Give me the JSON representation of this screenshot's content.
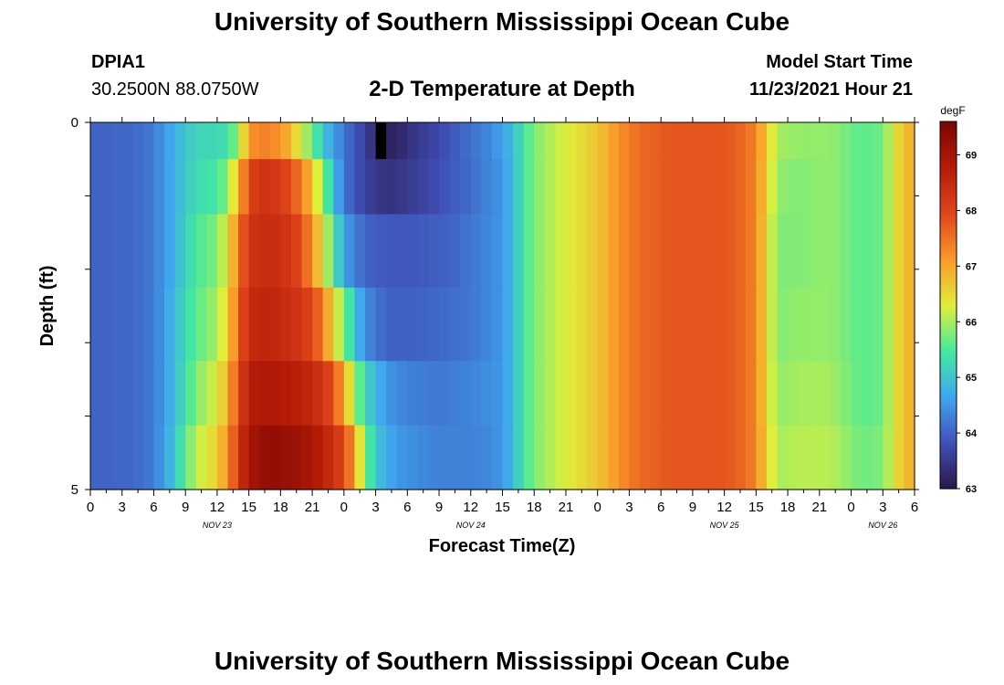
{
  "page": {
    "title": "University of Southern Mississippi Ocean Cube",
    "title_repeat": "University of Southern Mississippi Ocean Cube",
    "station_id": "DPIA1",
    "coordinates": "30.2500N  88.0750W",
    "subtitle": "2-D Temperature at Depth",
    "model_start_label": "Model Start Time",
    "model_start_value": "11/23/2021 Hour 21"
  },
  "chart_data": {
    "type": "heatmap",
    "title": "2-D Temperature at Depth",
    "xlabel": "Forecast Time(Z)",
    "ylabel": "Depth (ft)",
    "x_tick_labels": [
      "0",
      "3",
      "6",
      "9",
      "12",
      "15",
      "18",
      "21",
      "0",
      "3",
      "6",
      "9",
      "12",
      "15",
      "18",
      "21",
      "0",
      "3",
      "6",
      "9",
      "12",
      "15",
      "18",
      "21",
      "0",
      "3",
      "6"
    ],
    "x_range_hours": [
      0,
      78
    ],
    "date_labels": [
      {
        "label": "NOV 23",
        "hour": 12
      },
      {
        "label": "NOV 24",
        "hour": 36
      },
      {
        "label": "NOV 25",
        "hour": 60
      },
      {
        "label": "NOV 26",
        "hour": 75
      }
    ],
    "y_range_ft": [
      0,
      5
    ],
    "y_tick_labels": [
      "0",
      "5"
    ],
    "colorbar": {
      "unit": "degF",
      "min": 63,
      "max": 69.6,
      "tick_values": [
        63,
        64,
        65,
        66,
        67,
        68,
        69
      ],
      "tick_labels": [
        "63",
        "64",
        "65",
        "66",
        "67",
        "68",
        "69"
      ],
      "colors": [
        "#2b1648",
        "#4050b8",
        "#3fa6f0",
        "#42ea9e",
        "#e0ee3a",
        "#fa9a2a",
        "#e0461b",
        "#b61c07",
        "#7c0505"
      ]
    },
    "layers": [
      {
        "depth_ft": 0.25,
        "keyframes": [
          [
            0,
            64.0
          ],
          [
            4,
            64.05
          ],
          [
            6,
            64.25
          ],
          [
            8,
            64.8
          ],
          [
            10,
            65.2
          ],
          [
            13,
            65.3
          ],
          [
            14,
            66.0
          ],
          [
            15,
            67.1
          ],
          [
            16,
            67.4
          ],
          [
            18,
            67.2
          ],
          [
            19,
            66.8
          ],
          [
            20,
            66.2
          ],
          [
            21,
            65.7
          ],
          [
            22,
            65.0
          ],
          [
            24,
            64.2
          ],
          [
            26,
            63.6
          ],
          [
            27,
            63.3
          ],
          [
            28,
            63.2
          ],
          [
            29,
            63.2
          ],
          [
            30,
            63.4
          ],
          [
            32,
            63.6
          ],
          [
            35,
            64.0
          ],
          [
            38,
            64.4
          ],
          [
            40,
            64.9
          ],
          [
            41,
            65.4
          ],
          [
            42,
            65.8
          ],
          [
            45,
            66.3
          ],
          [
            48,
            66.7
          ],
          [
            50,
            67.2
          ],
          [
            52,
            67.6
          ],
          [
            55,
            67.8
          ],
          [
            60,
            67.8
          ],
          [
            62,
            67.6
          ],
          [
            63,
            67.3
          ],
          [
            64,
            66.7
          ],
          [
            65,
            66.0
          ],
          [
            67,
            65.9
          ],
          [
            70,
            65.9
          ],
          [
            73,
            65.6
          ],
          [
            75,
            65.7
          ],
          [
            76,
            66.3
          ],
          [
            77,
            66.8
          ],
          [
            78,
            66.9
          ]
        ]
      },
      {
        "depth_ft": 0.75,
        "keyframes": [
          [
            0,
            64.0
          ],
          [
            4,
            64.05
          ],
          [
            6,
            64.25
          ],
          [
            8,
            64.8
          ],
          [
            10,
            65.3
          ],
          [
            12,
            65.4
          ],
          [
            13,
            65.9
          ],
          [
            14,
            66.8
          ],
          [
            15,
            68.0
          ],
          [
            16,
            68.3
          ],
          [
            17,
            68.3
          ],
          [
            19,
            67.9
          ],
          [
            20,
            67.4
          ],
          [
            21,
            66.7
          ],
          [
            22,
            65.9
          ],
          [
            23,
            64.9
          ],
          [
            24,
            64.2
          ],
          [
            26,
            63.6
          ],
          [
            28,
            63.4
          ],
          [
            30,
            63.5
          ],
          [
            33,
            63.8
          ],
          [
            36,
            64.1
          ],
          [
            39,
            64.5
          ],
          [
            40,
            64.9
          ],
          [
            41,
            65.4
          ],
          [
            42,
            65.8
          ],
          [
            45,
            66.3
          ],
          [
            48,
            66.7
          ],
          [
            50,
            67.2
          ],
          [
            52,
            67.6
          ],
          [
            55,
            67.8
          ],
          [
            60,
            67.8
          ],
          [
            62,
            67.6
          ],
          [
            63,
            67.3
          ],
          [
            64,
            66.6
          ],
          [
            65,
            65.9
          ],
          [
            67,
            65.8
          ],
          [
            70,
            65.9
          ],
          [
            73,
            65.6
          ],
          [
            75,
            65.7
          ],
          [
            76,
            66.3
          ],
          [
            77,
            66.8
          ],
          [
            78,
            66.9
          ]
        ]
      },
      {
        "depth_ft": 1.75,
        "keyframes": [
          [
            0,
            64.0
          ],
          [
            4,
            64.05
          ],
          [
            6,
            64.25
          ],
          [
            8,
            64.8
          ],
          [
            10,
            65.5
          ],
          [
            12,
            65.8
          ],
          [
            13,
            66.4
          ],
          [
            14,
            67.4
          ],
          [
            15,
            68.3
          ],
          [
            17,
            68.5
          ],
          [
            19,
            68.2
          ],
          [
            20,
            67.9
          ],
          [
            21,
            67.2
          ],
          [
            22,
            66.4
          ],
          [
            23,
            65.5
          ],
          [
            24,
            64.6
          ],
          [
            26,
            64.0
          ],
          [
            28,
            63.9
          ],
          [
            31,
            63.9
          ],
          [
            34,
            64.0
          ],
          [
            36,
            64.2
          ],
          [
            39,
            64.5
          ],
          [
            40,
            64.9
          ],
          [
            41,
            65.4
          ],
          [
            42,
            65.8
          ],
          [
            45,
            66.3
          ],
          [
            48,
            66.7
          ],
          [
            50,
            67.2
          ],
          [
            52,
            67.6
          ],
          [
            55,
            67.8
          ],
          [
            60,
            67.8
          ],
          [
            62,
            67.6
          ],
          [
            63,
            67.3
          ],
          [
            64,
            66.5
          ],
          [
            65,
            65.8
          ],
          [
            67,
            65.8
          ],
          [
            70,
            65.9
          ],
          [
            73,
            65.6
          ],
          [
            75,
            65.7
          ],
          [
            76,
            66.3
          ],
          [
            77,
            66.8
          ],
          [
            78,
            66.9
          ]
        ]
      },
      {
        "depth_ft": 2.75,
        "keyframes": [
          [
            0,
            64.0
          ],
          [
            4,
            64.05
          ],
          [
            6,
            64.25
          ],
          [
            8,
            64.9
          ],
          [
            10,
            65.6
          ],
          [
            12,
            66.0
          ],
          [
            13,
            66.6
          ],
          [
            14,
            67.6
          ],
          [
            15,
            68.5
          ],
          [
            17,
            68.6
          ],
          [
            19,
            68.4
          ],
          [
            21,
            68.0
          ],
          [
            22,
            67.4
          ],
          [
            23,
            66.5
          ],
          [
            24,
            65.8
          ],
          [
            25,
            65.0
          ],
          [
            26,
            64.4
          ],
          [
            28,
            64.0
          ],
          [
            31,
            64.0
          ],
          [
            34,
            64.1
          ],
          [
            36,
            64.2
          ],
          [
            39,
            64.5
          ],
          [
            40,
            64.9
          ],
          [
            41,
            65.4
          ],
          [
            42,
            65.8
          ],
          [
            45,
            66.3
          ],
          [
            48,
            66.7
          ],
          [
            50,
            67.2
          ],
          [
            52,
            67.6
          ],
          [
            55,
            67.8
          ],
          [
            60,
            67.8
          ],
          [
            62,
            67.6
          ],
          [
            63,
            67.3
          ],
          [
            64,
            66.5
          ],
          [
            65,
            65.8
          ],
          [
            67,
            65.9
          ],
          [
            70,
            65.9
          ],
          [
            73,
            65.6
          ],
          [
            75,
            65.7
          ],
          [
            76,
            66.3
          ],
          [
            77,
            66.8
          ],
          [
            78,
            66.9
          ]
        ]
      },
      {
        "depth_ft": 3.75,
        "keyframes": [
          [
            0,
            64.0
          ],
          [
            4,
            64.05
          ],
          [
            6,
            64.25
          ],
          [
            8,
            64.9
          ],
          [
            10,
            65.8
          ],
          [
            12,
            66.3
          ],
          [
            13,
            66.9
          ],
          [
            14,
            67.9
          ],
          [
            15,
            68.8
          ],
          [
            17,
            68.9
          ],
          [
            20,
            68.7
          ],
          [
            22,
            68.3
          ],
          [
            23,
            67.8
          ],
          [
            24,
            67.0
          ],
          [
            25,
            66.0
          ],
          [
            26,
            65.2
          ],
          [
            28,
            64.5
          ],
          [
            30,
            64.3
          ],
          [
            33,
            64.2
          ],
          [
            35,
            64.3
          ],
          [
            37,
            64.4
          ],
          [
            39,
            64.5
          ],
          [
            40,
            64.9
          ],
          [
            41,
            65.4
          ],
          [
            42,
            65.8
          ],
          [
            45,
            66.3
          ],
          [
            48,
            66.7
          ],
          [
            50,
            67.2
          ],
          [
            52,
            67.6
          ],
          [
            55,
            67.8
          ],
          [
            60,
            67.8
          ],
          [
            62,
            67.6
          ],
          [
            63,
            67.3
          ],
          [
            64,
            66.5
          ],
          [
            65,
            65.9
          ],
          [
            67,
            66.0
          ],
          [
            70,
            66.0
          ],
          [
            73,
            65.6
          ],
          [
            75,
            65.7
          ],
          [
            76,
            66.3
          ],
          [
            77,
            66.8
          ],
          [
            78,
            66.9
          ]
        ]
      },
      {
        "depth_ft": 4.5,
        "keyframes": [
          [
            0,
            64.0
          ],
          [
            4,
            64.05
          ],
          [
            6,
            64.25
          ],
          [
            8,
            65.0
          ],
          [
            9,
            65.6
          ],
          [
            10,
            66.1
          ],
          [
            12,
            66.6
          ],
          [
            13,
            67.2
          ],
          [
            14,
            68.2
          ],
          [
            15,
            69.0
          ],
          [
            17,
            69.3
          ],
          [
            20,
            69.1
          ],
          [
            22,
            68.7
          ],
          [
            24,
            68.0
          ],
          [
            25,
            67.0
          ],
          [
            26,
            65.8
          ],
          [
            27,
            65.0
          ],
          [
            29,
            64.5
          ],
          [
            33,
            64.3
          ],
          [
            36,
            64.3
          ],
          [
            38,
            64.4
          ],
          [
            39,
            64.5
          ],
          [
            40,
            64.9
          ],
          [
            41,
            65.4
          ],
          [
            42,
            65.8
          ],
          [
            45,
            66.3
          ],
          [
            48,
            66.7
          ],
          [
            50,
            67.2
          ],
          [
            52,
            67.6
          ],
          [
            55,
            67.8
          ],
          [
            60,
            67.8
          ],
          [
            62,
            67.6
          ],
          [
            63,
            67.3
          ],
          [
            64,
            66.6
          ],
          [
            65,
            66.0
          ],
          [
            67,
            66.1
          ],
          [
            70,
            66.1
          ],
          [
            73,
            65.7
          ],
          [
            75,
            65.8
          ],
          [
            76,
            66.3
          ],
          [
            77,
            66.8
          ],
          [
            78,
            66.9
          ]
        ]
      }
    ],
    "missing_cells": [
      {
        "hour": 27,
        "depth_ft": 0.25
      }
    ]
  }
}
